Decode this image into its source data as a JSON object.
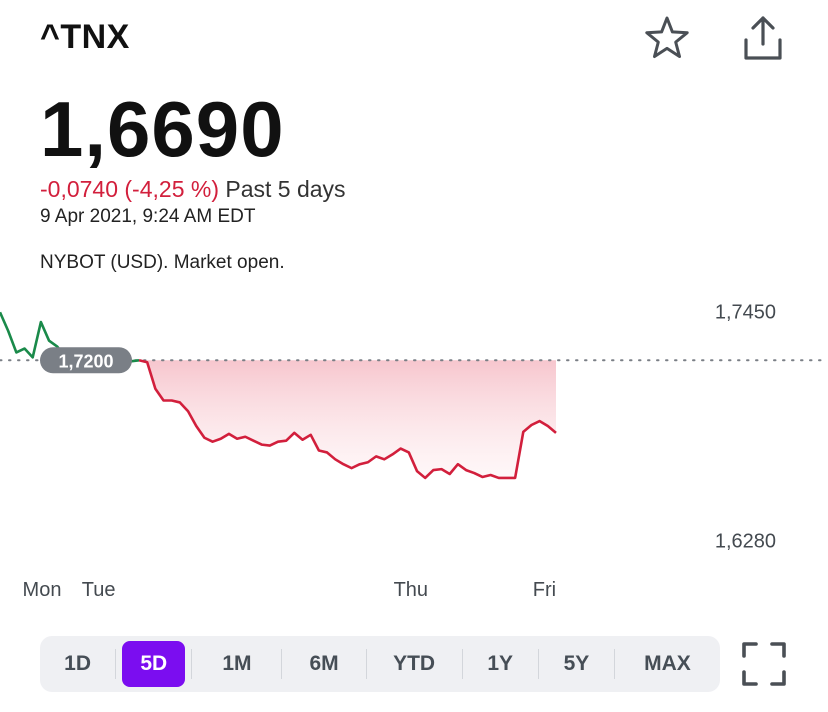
{
  "header": {
    "symbol": "^TNX",
    "price": "1,6690",
    "change": "-0,0740 (-4,25 %)",
    "period": "Past 5 days",
    "timestamp": "9 Apr 2021, 9:24 AM EDT",
    "exchange": "NYBOT (USD). Market open."
  },
  "icons": {
    "star": "star-icon",
    "share": "share-icon",
    "fullscreen": "fullscreen-icon"
  },
  "colors": {
    "negative": "#d21f3c",
    "positive": "#1a8a4a",
    "accent": "#7b0df0",
    "fill": "#f6c3cb"
  },
  "range_tabs": [
    {
      "label": "1D",
      "active": false
    },
    {
      "label": "5D",
      "active": true
    },
    {
      "label": "1M",
      "active": false
    },
    {
      "label": "6M",
      "active": false
    },
    {
      "label": "YTD",
      "active": false
    },
    {
      "label": "1Y",
      "active": false
    },
    {
      "label": "5Y",
      "active": false
    },
    {
      "label": "MAX",
      "active": false
    }
  ],
  "chart_data": {
    "type": "line",
    "x_tick_labels": [
      "Mon",
      "Tue",
      "Thu",
      "Fri"
    ],
    "y_tick_labels": [
      "1,7450",
      "1,6280"
    ],
    "y_ticks": [
      1.745,
      1.628
    ],
    "ylim": [
      1.6156,
      1.7533
    ],
    "previous_close": 1.72,
    "previous_close_label": "1,7200",
    "grid": false,
    "series": [
      {
        "values": [
          1.7445,
          1.735,
          1.724,
          1.726,
          1.7215,
          1.7395,
          1.73,
          1.727,
          1.7215,
          1.7225,
          1.7175,
          1.7155,
          1.717,
          1.7165,
          1.718,
          1.7175,
          1.7195,
          1.72,
          1.719,
          1.7055,
          1.6995,
          1.6995,
          1.6985,
          1.694,
          1.6865,
          1.6805,
          1.6785,
          1.68,
          1.6825,
          1.68,
          1.681,
          1.679,
          1.677,
          1.6765,
          1.6785,
          1.679,
          1.683,
          1.6795,
          1.682,
          1.674,
          1.673,
          1.6695,
          1.667,
          1.665,
          1.667,
          1.668,
          1.671,
          1.6695,
          1.672,
          1.675,
          1.673,
          1.6635,
          1.66,
          1.664,
          1.6645,
          1.662,
          1.667,
          1.664,
          1.6625,
          1.6605,
          1.6615,
          1.66,
          1.66,
          1.66,
          1.6835,
          1.687,
          1.689,
          1.6865,
          1.683
        ]
      }
    ]
  }
}
